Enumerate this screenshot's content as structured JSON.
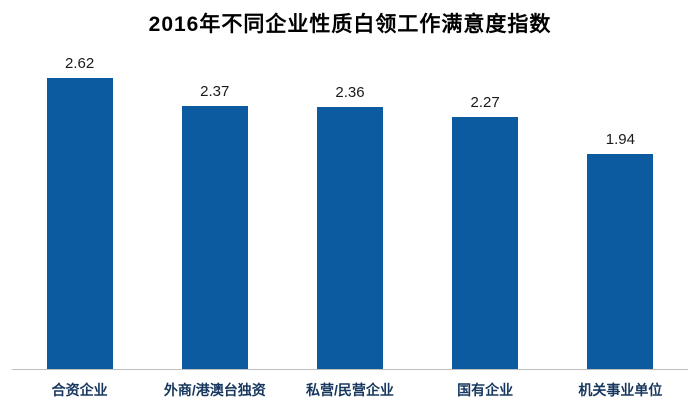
{
  "chart_data": {
    "type": "bar",
    "title": "2016年不同企业性质白领工作满意度指数",
    "categories": [
      "合资企业",
      "外商/港澳台独资",
      "私营/民营企业",
      "国有企业",
      "机关事业单位"
    ],
    "values": [
      2.62,
      2.37,
      2.36,
      2.27,
      1.94
    ],
    "xlabel": "",
    "ylabel": "",
    "ylim": [
      0,
      2.9
    ],
    "grid": false,
    "legend": false,
    "bar_color": "#0c5aa0",
    "axis_line_color": "#bfbfbf",
    "value_label_color": "#1a1a1a",
    "category_label_color": "#17375e"
  }
}
